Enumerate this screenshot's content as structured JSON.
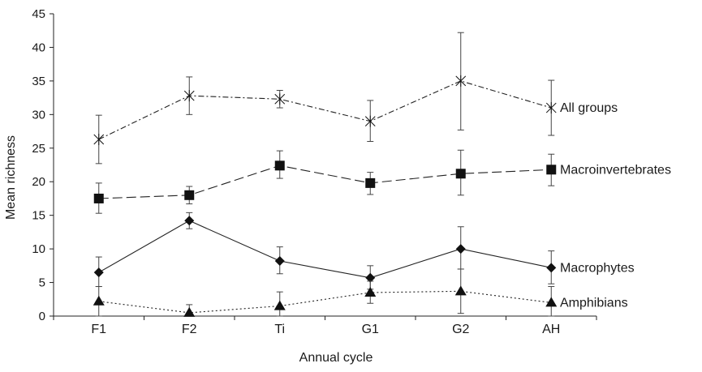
{
  "chart_data": {
    "type": "line",
    "title": "",
    "xlabel": "Annual cycle",
    "ylabel": "Mean richness",
    "categories": [
      "F1",
      "F2",
      "Ti",
      "G1",
      "G2",
      "AH"
    ],
    "ylim": [
      0,
      45
    ],
    "yticks": [
      0,
      5,
      10,
      15,
      20,
      25,
      30,
      35,
      40,
      45
    ],
    "grid": false,
    "legend": "labels at right end of each series",
    "series": [
      {
        "name": "All groups",
        "marker": "asterisk",
        "line_style": "dash-dot",
        "values": [
          26.3,
          32.8,
          32.3,
          29.0,
          35.0,
          31.0
        ],
        "err_low": [
          22.7,
          30.0,
          31.0,
          26.0,
          27.7,
          26.9
        ],
        "err_high": [
          29.9,
          35.6,
          33.6,
          32.1,
          42.2,
          35.1
        ]
      },
      {
        "name": "Macroinvertebrates",
        "marker": "square",
        "line_style": "long-dash",
        "values": [
          17.5,
          18.0,
          22.4,
          19.8,
          21.2,
          21.8
        ],
        "err_low": [
          15.3,
          16.7,
          20.5,
          18.1,
          18.0,
          19.4
        ],
        "err_high": [
          19.8,
          19.3,
          24.6,
          21.4,
          24.7,
          24.1
        ]
      },
      {
        "name": "Macrophytes",
        "marker": "diamond",
        "line_style": "solid",
        "values": [
          6.5,
          14.2,
          8.2,
          5.7,
          10.0,
          7.2
        ],
        "err_low": [
          4.4,
          13.0,
          6.3,
          4.0,
          7.0,
          4.8
        ],
        "err_high": [
          8.8,
          15.4,
          10.3,
          7.5,
          13.3,
          9.7
        ]
      },
      {
        "name": "Amphibians",
        "marker": "triangle",
        "line_style": "dotted",
        "values": [
          2.2,
          0.5,
          1.5,
          3.5,
          3.7,
          2.0
        ],
        "err_low": [
          0.0,
          0.0,
          0.0,
          1.9,
          0.4,
          0.0
        ],
        "err_high": [
          4.4,
          1.7,
          3.6,
          5.2,
          7.0,
          4.4
        ]
      }
    ]
  }
}
